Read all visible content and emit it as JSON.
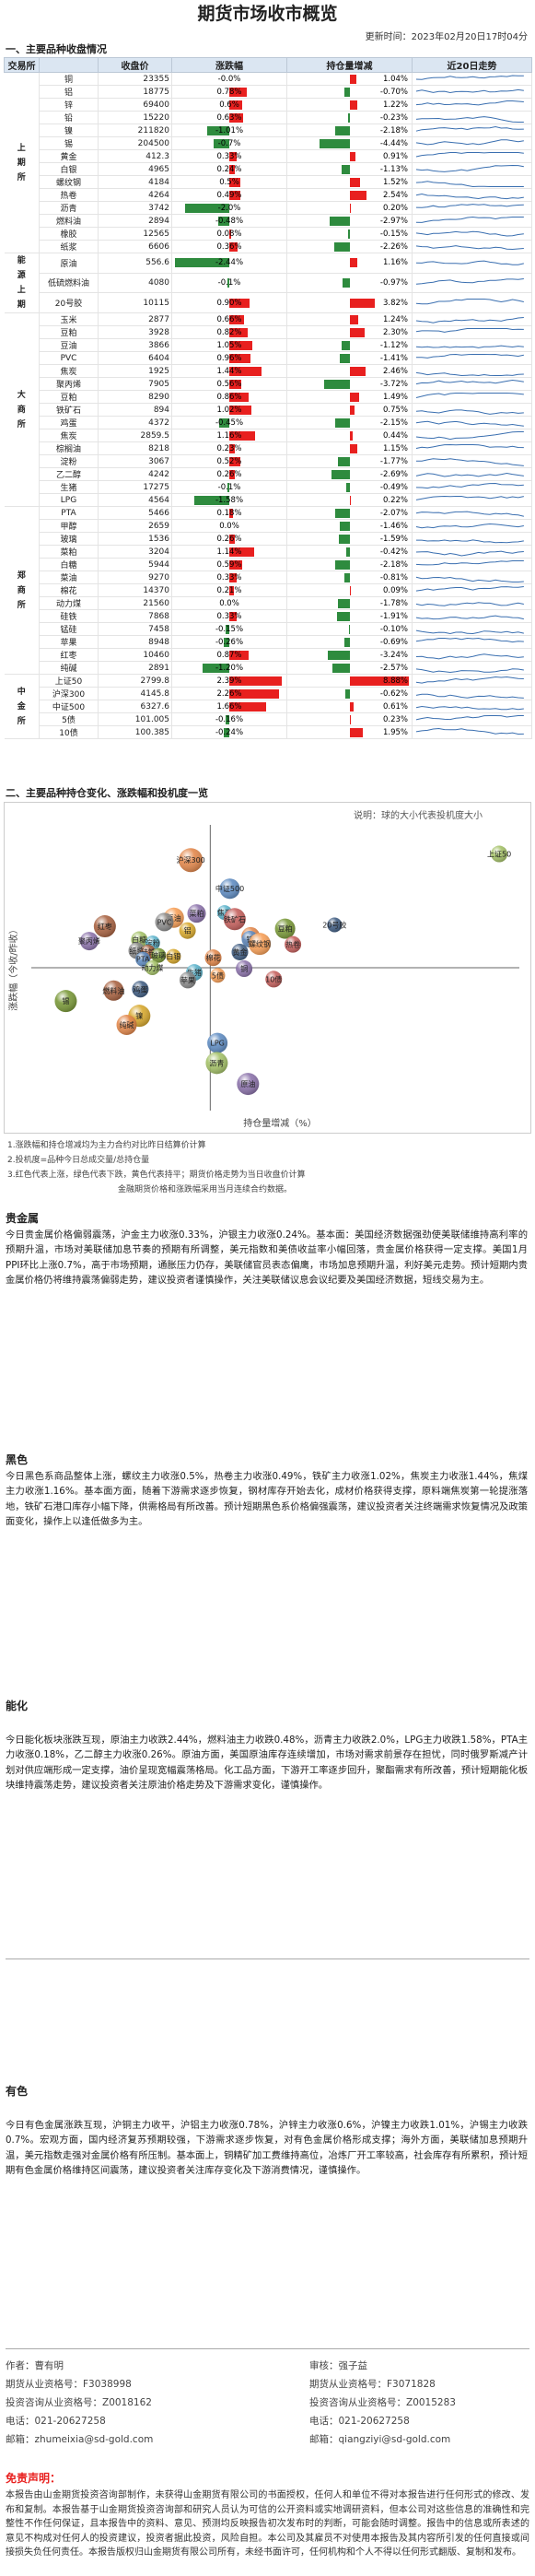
{
  "title": "期货市场收市概览",
  "update_time": "更新时间：2023年02月20日17时04分",
  "section1_title": "一、主要品种收盘情况",
  "table_headers": [
    "交易所",
    "收盘价",
    "涨跌幅",
    "持仓量增减",
    "近20日走势"
  ],
  "groups": [
    {
      "name": "上\n期\n所",
      "rows": [
        {
          "name": "铜",
          "price": "23355",
          "chg": "-0.0%",
          "chg_v": -0.0,
          "oi": "1.04%",
          "oi_v": 1.04
        },
        {
          "name": "铝",
          "price": "18775",
          "chg": "0.78%",
          "chg_v": 0.78,
          "oi": "-0.70%",
          "oi_v": -0.7
        },
        {
          "name": "锌",
          "price": "69400",
          "chg": "0.6%",
          "chg_v": 0.6,
          "oi": "1.22%",
          "oi_v": 1.22
        },
        {
          "name": "铅",
          "price": "15220",
          "chg": "0.63%",
          "chg_v": 0.63,
          "oi": "-0.23%",
          "oi_v": -0.23
        },
        {
          "name": "镍",
          "price": "211820",
          "chg": "-1.01%",
          "chg_v": -1.01,
          "oi": "-2.18%",
          "oi_v": -2.18
        },
        {
          "name": "锡",
          "price": "204500",
          "chg": "-0.7%",
          "chg_v": -0.7,
          "oi": "-4.44%",
          "oi_v": -4.44
        },
        {
          "name": "黄金",
          "price": "412.3",
          "chg": "0.33%",
          "chg_v": 0.33,
          "oi": "0.91%",
          "oi_v": 0.91
        },
        {
          "name": "白银",
          "price": "4965",
          "chg": "0.24%",
          "chg_v": 0.24,
          "oi": "-1.13%",
          "oi_v": -1.13
        },
        {
          "name": "螺纹钢",
          "price": "4184",
          "chg": "0.5%",
          "chg_v": 0.5,
          "oi": "1.52%",
          "oi_v": 1.52
        },
        {
          "name": "热卷",
          "price": "4264",
          "chg": "0.49%",
          "chg_v": 0.49,
          "oi": "2.54%",
          "oi_v": 2.54
        },
        {
          "name": "沥青",
          "price": "3742",
          "chg": "-2.0%",
          "chg_v": -2.0,
          "oi": "0.20%",
          "oi_v": 0.2
        },
        {
          "name": "燃料油",
          "price": "2894",
          "chg": "-0.48%",
          "chg_v": -0.48,
          "oi": "-2.97%",
          "oi_v": -2.97
        },
        {
          "name": "橡胶",
          "price": "12565",
          "chg": "0.08%",
          "chg_v": 0.08,
          "oi": "-0.15%",
          "oi_v": -0.15
        },
        {
          "name": "纸浆",
          "price": "6606",
          "chg": "0.36%",
          "chg_v": 0.36,
          "oi": "-2.26%",
          "oi_v": -2.26
        }
      ]
    },
    {
      "name": "能\n源\n上\n期",
      "rows": [
        {
          "name": "原油",
          "price": "556.6",
          "chg": "-2.44%",
          "chg_v": -2.44,
          "oi": "1.16%",
          "oi_v": 1.16
        },
        {
          "name": "低硫燃料油",
          "price": "4080",
          "chg": "-0.1%",
          "chg_v": -0.1,
          "oi": "-0.97%",
          "oi_v": -0.97
        },
        {
          "name": "20号胶",
          "price": "10115",
          "chg": "0.90%",
          "chg_v": 0.9,
          "oi": "3.82%",
          "oi_v": 3.82
        }
      ]
    },
    {
      "name": "大\n商\n所",
      "rows": [
        {
          "name": "玉米",
          "price": "2877",
          "chg": "0.66%",
          "chg_v": 0.66,
          "oi": "1.24%",
          "oi_v": 1.24
        },
        {
          "name": "豆粕",
          "price": "3928",
          "chg": "0.82%",
          "chg_v": 0.82,
          "oi": "2.30%",
          "oi_v": 2.3
        },
        {
          "name": "豆油",
          "price": "3866",
          "chg": "1.05%",
          "chg_v": 1.05,
          "oi": "-1.12%",
          "oi_v": -1.12
        },
        {
          "name": "PVC",
          "price": "6404",
          "chg": "0.96%",
          "chg_v": 0.96,
          "oi": "-1.41%",
          "oi_v": -1.41
        },
        {
          "name": "焦炭",
          "price": "1925",
          "chg": "1.44%",
          "chg_v": 1.44,
          "oi": "2.46%",
          "oi_v": 2.46
        },
        {
          "name": "聚丙烯",
          "price": "7905",
          "chg": "0.56%",
          "chg_v": 0.56,
          "oi": "-3.72%",
          "oi_v": -3.72
        },
        {
          "name": "豆粕",
          "price": "8290",
          "chg": "0.86%",
          "chg_v": 0.86,
          "oi": "1.49%",
          "oi_v": 1.49
        },
        {
          "name": "铁矿石",
          "price": "894",
          "chg": "1.02%",
          "chg_v": 1.02,
          "oi": "0.75%",
          "oi_v": 0.75
        },
        {
          "name": "鸡蛋",
          "price": "4372",
          "chg": "-0.45%",
          "chg_v": -0.45,
          "oi": "-2.15%",
          "oi_v": -2.15
        },
        {
          "name": "焦炭",
          "price": "2859.5",
          "chg": "1.16%",
          "chg_v": 1.16,
          "oi": "0.44%",
          "oi_v": 0.44
        },
        {
          "name": "棕榈油",
          "price": "8218",
          "chg": "0.23%",
          "chg_v": 0.23,
          "oi": "1.15%",
          "oi_v": 1.15
        },
        {
          "name": "淀粉",
          "price": "3067",
          "chg": "0.52%",
          "chg_v": 0.52,
          "oi": "-1.77%",
          "oi_v": -1.77
        },
        {
          "name": "乙二醇",
          "price": "4242",
          "chg": "0.26%",
          "chg_v": 0.26,
          "oi": "-2.69%",
          "oi_v": -2.69
        },
        {
          "name": "生猪",
          "price": "17275",
          "chg": "-0.1%",
          "chg_v": -0.1,
          "oi": "-0.49%",
          "oi_v": -0.49
        },
        {
          "name": "LPG",
          "price": "4564",
          "chg": "-1.58%",
          "chg_v": -1.58,
          "oi": "0.22%",
          "oi_v": 0.22
        }
      ]
    },
    {
      "name": "郑\n商\n所",
      "rows": [
        {
          "name": "PTA",
          "price": "5466",
          "chg": "0.18%",
          "chg_v": 0.18,
          "oi": "-2.07%",
          "oi_v": -2.07
        },
        {
          "name": "甲醇",
          "price": "2659",
          "chg": "0.0%",
          "chg_v": 0.0,
          "oi": "-1.46%",
          "oi_v": -1.46
        },
        {
          "name": "玻璃",
          "price": "1536",
          "chg": "0.26%",
          "chg_v": 0.26,
          "oi": "-1.59%",
          "oi_v": -1.59
        },
        {
          "name": "菜粕",
          "price": "3204",
          "chg": "1.14%",
          "chg_v": 1.14,
          "oi": "-0.42%",
          "oi_v": -0.42
        },
        {
          "name": "白糖",
          "price": "5944",
          "chg": "0.59%",
          "chg_v": 0.59,
          "oi": "-2.18%",
          "oi_v": -2.18
        },
        {
          "name": "菜油",
          "price": "9270",
          "chg": "0.33%",
          "chg_v": 0.33,
          "oi": "-0.81%",
          "oi_v": -0.81
        },
        {
          "name": "棉花",
          "price": "14370",
          "chg": "0.21%",
          "chg_v": 0.21,
          "oi": "0.09%",
          "oi_v": 0.09
        },
        {
          "name": "动力煤",
          "price": "21560",
          "chg": "0.0%",
          "chg_v": 0.0,
          "oi": "-1.78%",
          "oi_v": -1.78
        },
        {
          "name": "硅铁",
          "price": "7868",
          "chg": "0.33%",
          "chg_v": 0.33,
          "oi": "-1.91%",
          "oi_v": -1.91
        },
        {
          "name": "锰硅",
          "price": "7458",
          "chg": "-0.15%",
          "chg_v": -0.15,
          "oi": "-0.10%",
          "oi_v": -0.1
        },
        {
          "name": "苹果",
          "price": "8948",
          "chg": "-0.26%",
          "chg_v": -0.26,
          "oi": "-0.69%",
          "oi_v": -0.69
        },
        {
          "name": "红枣",
          "price": "10460",
          "chg": "0.87%",
          "chg_v": 0.87,
          "oi": "-3.24%",
          "oi_v": -3.24
        },
        {
          "name": "纯碱",
          "price": "2891",
          "chg": "-1.20%",
          "chg_v": -1.2,
          "oi": "-2.57%",
          "oi_v": -2.57
        }
      ]
    },
    {
      "name": "中\n金\n所",
      "rows": [
        {
          "name": "上证50",
          "price": "2799.8",
          "chg": "2.39%",
          "chg_v": 2.39,
          "oi": "8.88%",
          "oi_v": 8.88
        },
        {
          "name": "沪深300",
          "price": "4145.8",
          "chg": "2.26%",
          "chg_v": 2.26,
          "oi": "-0.62%",
          "oi_v": -0.62
        },
        {
          "name": "中证500",
          "price": "6327.6",
          "chg": "1.66%",
          "chg_v": 1.66,
          "oi": "0.61%",
          "oi_v": 0.61
        },
        {
          "name": "5债",
          "price": "101.005",
          "chg": "-0.16%",
          "chg_v": -0.16,
          "oi": "0.23%",
          "oi_v": 0.23
        },
        {
          "name": "10债",
          "price": "100.385",
          "chg": "-0.24%",
          "chg_v": -0.24,
          "oi": "1.95%",
          "oi_v": 1.95
        }
      ]
    }
  ],
  "section2_title": "二、主要品种持仓变化、涨跌幅和投机度一览",
  "scatter": {
    "legend": "说明：球的大小代表投机度大小",
    "xlabel": "持仓量增减（%）",
    "ylabel": "涨跌幅（今收/昨收）",
    "points": [
      {
        "label": "沪深300",
        "x": -0.6,
        "y": 2.26,
        "r": 13
      },
      {
        "label": "中证500",
        "x": 0.6,
        "y": 1.66,
        "r": 11
      },
      {
        "label": "上证50",
        "x": 8.88,
        "y": 2.39,
        "r": 9
      },
      {
        "label": "菜粕",
        "x": -0.42,
        "y": 1.14,
        "r": 10
      },
      {
        "label": "焦炭",
        "x": 0.44,
        "y": 1.16,
        "r": 8
      },
      {
        "label": "豆油",
        "x": -1.12,
        "y": 1.05,
        "r": 11
      },
      {
        "label": "铁矿石",
        "x": 0.75,
        "y": 1.02,
        "r": 12
      },
      {
        "label": "PVC",
        "x": -1.41,
        "y": 0.96,
        "r": 10
      },
      {
        "label": "20号胶",
        "x": 3.82,
        "y": 0.9,
        "r": 8
      },
      {
        "label": "红枣",
        "x": -3.24,
        "y": 0.87,
        "r": 12
      },
      {
        "label": "豆粕",
        "x": 2.3,
        "y": 0.82,
        "r": 11
      },
      {
        "label": "铝",
        "x": -0.7,
        "y": 0.78,
        "r": 9
      },
      {
        "label": "玉米",
        "x": 1.24,
        "y": 0.66,
        "r": 10
      },
      {
        "label": "锌",
        "x": 1.22,
        "y": 0.6,
        "r": 9
      },
      {
        "label": "白糖",
        "x": -2.18,
        "y": 0.59,
        "r": 9
      },
      {
        "label": "聚丙烯",
        "x": -3.72,
        "y": 0.56,
        "r": 10
      },
      {
        "label": "淀粉",
        "x": -1.77,
        "y": 0.52,
        "r": 8
      },
      {
        "label": "螺纹钢",
        "x": 1.52,
        "y": 0.5,
        "r": 12
      },
      {
        "label": "热卷",
        "x": 2.54,
        "y": 0.49,
        "r": 9
      },
      {
        "label": "纸浆",
        "x": -2.26,
        "y": 0.36,
        "r": 9
      },
      {
        "label": "黄金",
        "x": 0.91,
        "y": 0.33,
        "r": 9
      },
      {
        "label": "硅铁",
        "x": -1.91,
        "y": 0.33,
        "r": 8
      },
      {
        "label": "玻璃",
        "x": -1.59,
        "y": 0.26,
        "r": 8
      },
      {
        "label": "白银",
        "x": -1.13,
        "y": 0.24,
        "r": 8
      },
      {
        "label": "棉花",
        "x": 0.09,
        "y": 0.21,
        "r": 9
      },
      {
        "label": "PTA",
        "x": -2.07,
        "y": 0.18,
        "r": 8
      },
      {
        "label": "动力煤",
        "x": -1.78,
        "y": 0.0,
        "r": 8
      },
      {
        "label": "铜",
        "x": 1.04,
        "y": -0.02,
        "r": 9
      },
      {
        "label": "生猪",
        "x": -0.49,
        "y": -0.1,
        "r": 9
      },
      {
        "label": "5债",
        "x": 0.23,
        "y": -0.16,
        "r": 8
      },
      {
        "label": "10债",
        "x": 1.95,
        "y": -0.24,
        "r": 9
      },
      {
        "label": "苹果",
        "x": -0.69,
        "y": -0.26,
        "r": 9
      },
      {
        "label": "鸡蛋",
        "x": -2.15,
        "y": -0.45,
        "r": 9
      },
      {
        "label": "燃料油",
        "x": -2.97,
        "y": -0.48,
        "r": 11
      },
      {
        "label": "锡",
        "x": -4.44,
        "y": -0.7,
        "r": 12
      },
      {
        "label": "镍",
        "x": -2.18,
        "y": -1.01,
        "r": 12
      },
      {
        "label": "纯碱",
        "x": -2.57,
        "y": -1.2,
        "r": 11
      },
      {
        "label": "LPG",
        "x": 0.22,
        "y": -1.58,
        "r": 11
      },
      {
        "label": "沥青",
        "x": 0.2,
        "y": -2.0,
        "r": 12
      },
      {
        "label": "原油",
        "x": 1.16,
        "y": -2.44,
        "r": 12
      }
    ]
  },
  "notes": [
    "1.涨跌幅和持仓增减均为主力合约对比昨日结算价计算",
    "2.投机度=品种今日总成交量/总持仓量",
    "3.红色代表上涨，绿色代表下跌，黄色代表持平；期货价格走势为当日收盘价计算"
  ],
  "notes_extra": "金融期货价格和涨跌幅采用当月连续合约数据。",
  "sections": [
    {
      "title": "贵金属",
      "text": "今日贵金属价格偏弱震荡，沪金主力收涨0.33%，沪银主力收涨0.24%。基本面：美国经济数据强劲使美联储维持高利率的预期升温，市场对美联储加息节奏的预期有所调整，美元指数和美债收益率小幅回落，贵金属价格获得一定支撑。美国1月PPI环比上涨0.7%，高于市场预期，通胀压力仍存，美联储官员表态偏鹰，市场加息预期升温，利好美元走势。预计短期内贵金属价格仍将维持震荡偏弱走势，建议投资者谨慎操作，关注美联储议息会议纪要及美国经济数据，短线交易为主。"
    },
    {
      "title": "黑色",
      "text": "今日黑色系商品整体上涨，螺纹主力收涨0.5%，热卷主力收涨0.49%，铁矿主力收涨1.02%，焦炭主力收涨1.44%，焦煤主力收涨1.16%。基本面方面，随着下游需求逐步恢复，钢材库存开始去化，成材价格获得支撑，原料端焦炭第一轮提涨落地，铁矿石港口库存小幅下降，供需格局有所改善。预计短期黑色系价格偏强震荡，建议投资者关注终端需求恢复情况及政策面变化，操作上以逢低做多为主。"
    },
    {
      "title": "能化",
      "text": "今日能化板块涨跌互现，原油主力收跌2.44%，燃料油主力收跌0.48%，沥青主力收跌2.0%，LPG主力收跌1.58%，PTA主力收涨0.18%，乙二醇主力收涨0.26%。原油方面，美国原油库存连续增加，市场对需求前景存在担忧，同时俄罗斯减产计划对供应端形成一定支撑，油价呈现宽幅震荡格局。化工品方面，下游开工率逐步回升，聚酯需求有所改善，预计短期能化板块维持震荡走势，建议投资者关注原油价格走势及下游需求变化，谨慎操作。"
    },
    {
      "title": "有色",
      "text": "今日有色金属涨跌互现，沪铜主力收平，沪铝主力收涨0.78%，沪锌主力收涨0.6%，沪镍主力收跌1.01%，沪锡主力收跌0.7%。宏观方面，国内经济复苏预期较强，下游需求逐步恢复，对有色金属价格形成支撑；海外方面，美联储加息预期升温，美元指数走强对金属价格有所压制。基本面上，铜精矿加工费维持高位，冶炼厂开工率较高，社会库存有所累积，预计短期有色金属价格维持区间震荡，建议投资者关注库存变化及下游消费情况，谨慎操作。"
    }
  ],
  "author_info": {
    "left": [
      "作者：曹有明",
      "期货从业资格号：F3038998",
      "投资咨询从业资格号：Z0018162",
      "电话：021-20627258",
      "邮箱：zhumeixia@sd-gold.com"
    ],
    "right": [
      "审核：强子益",
      "期货从业资格号：F3071828",
      "投资咨询从业资格号：Z0015283",
      "电话：021-20627258",
      "邮箱：qiangziyi@sd-gold.com"
    ]
  },
  "disclaimer_title": "免责声明：",
  "disclaimer": "本报告由山金期货投资咨询部制作，未获得山金期货有限公司的书面授权，任何人和单位不得对本报告进行任何形式的修改、发布和复制。本报告基于山金期货投资咨询部和研究人员认为可信的公开资料或实地调研资料，但本公司对这些信息的准确性和完整性不作任何保证，且本报告中的资料、意见、预测均反映报告初次发布时的判断，可能会随时调整。报告中的信息或所表述的意见不构成对任何人的投资建议，投资者据此投资，风险自担。本公司及其雇员不对使用本报告及其内容所引发的任何直接或间接损失负任何责任。本报告版权归山金期货有限公司所有，未经书面许可，任何机构和个人不得以任何形式翻版、复制和发布。"
}
